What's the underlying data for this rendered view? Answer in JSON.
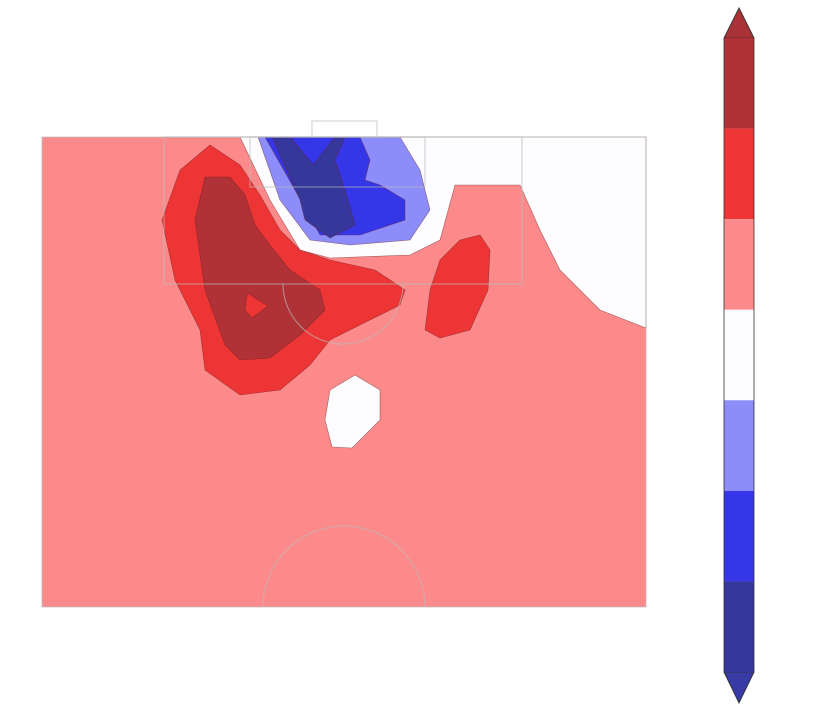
{
  "chart_data": {
    "type": "contour",
    "colorbar": {
      "extend_max_color": "#a83236",
      "extend_min_color": "#383aa6",
      "colors": [
        "#b03237",
        "#ee3535",
        "#fd8a8a",
        "#fdfcfe",
        "#8c8cfa",
        "#3536e8",
        "#35379a"
      ]
    }
  }
}
